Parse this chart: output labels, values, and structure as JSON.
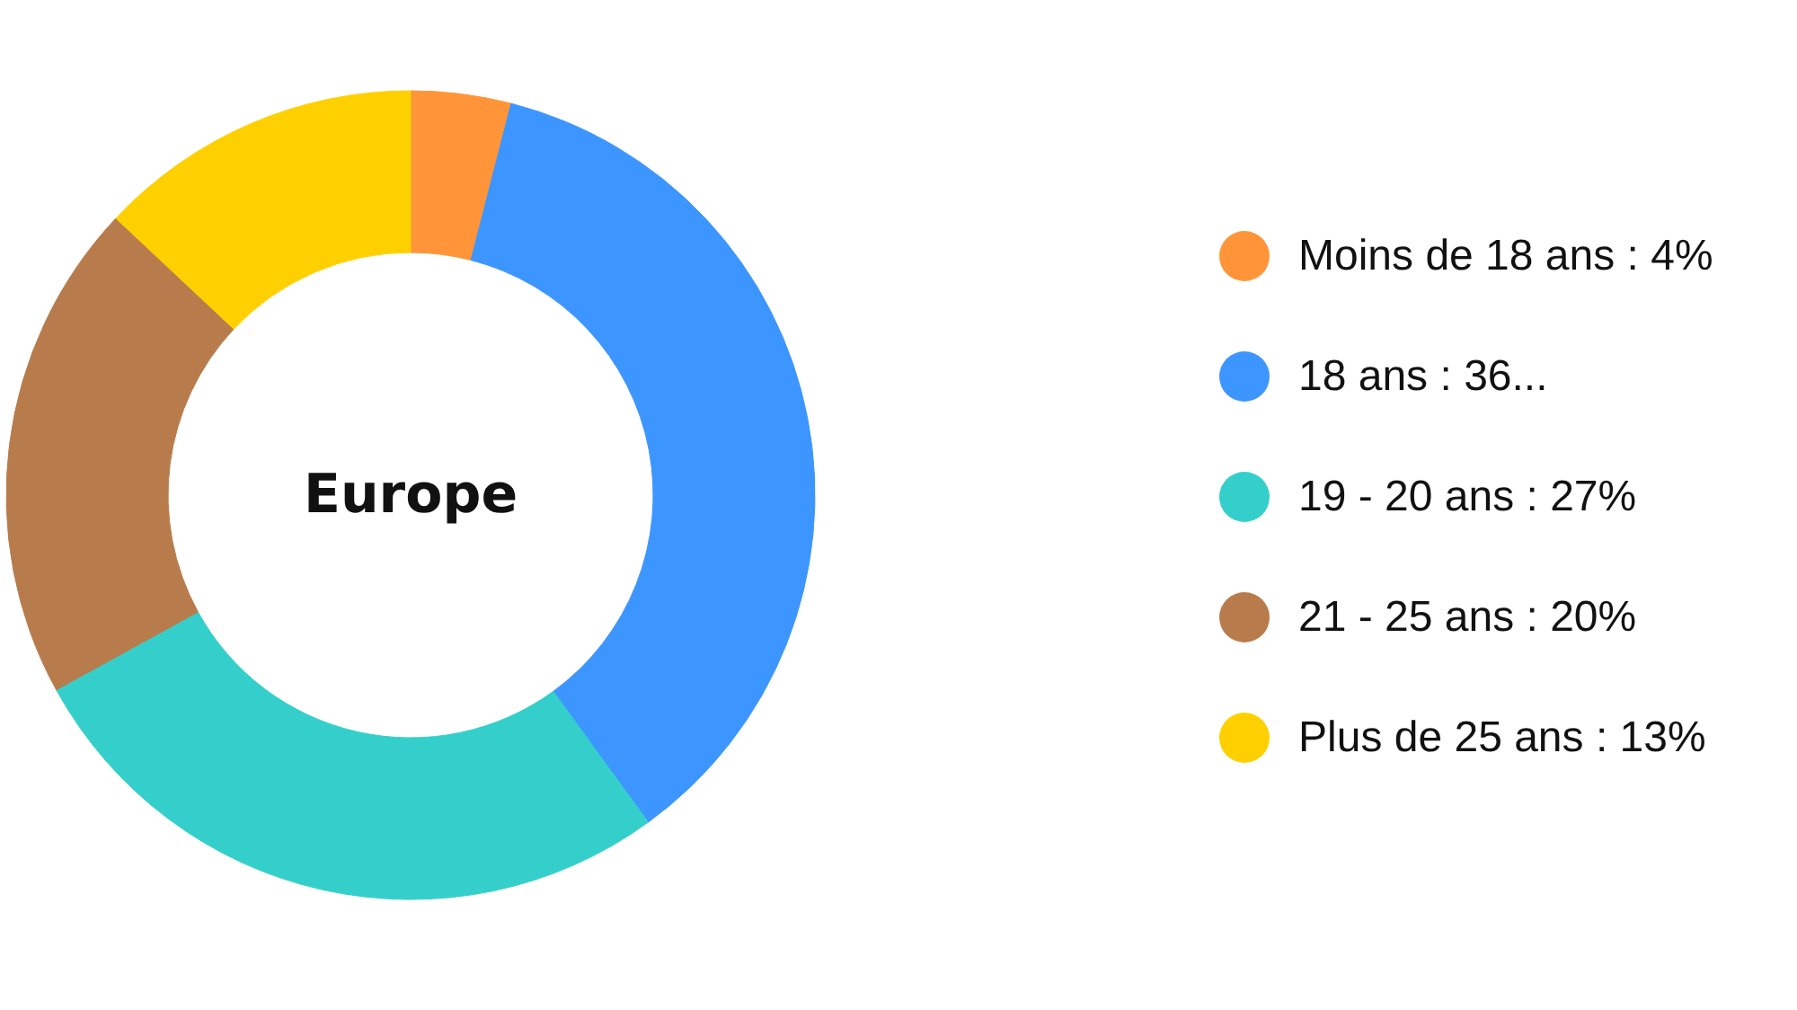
{
  "chart_data": {
    "type": "donut",
    "title": "Europe",
    "categories": [
      "Moins de 18 ans",
      "18 ans",
      "19 - 20 ans",
      "21 - 25 ans",
      "Plus de 25 ans"
    ],
    "values": [
      4,
      36,
      27,
      20,
      13
    ],
    "value_labels": [
      "4%",
      "36...",
      "27%",
      "20%",
      "13%"
    ],
    "colors": [
      "#ff9538",
      "#3d95ff",
      "#35cfcb",
      "#b87c4c",
      "#ffd000"
    ],
    "legend": "right"
  }
}
